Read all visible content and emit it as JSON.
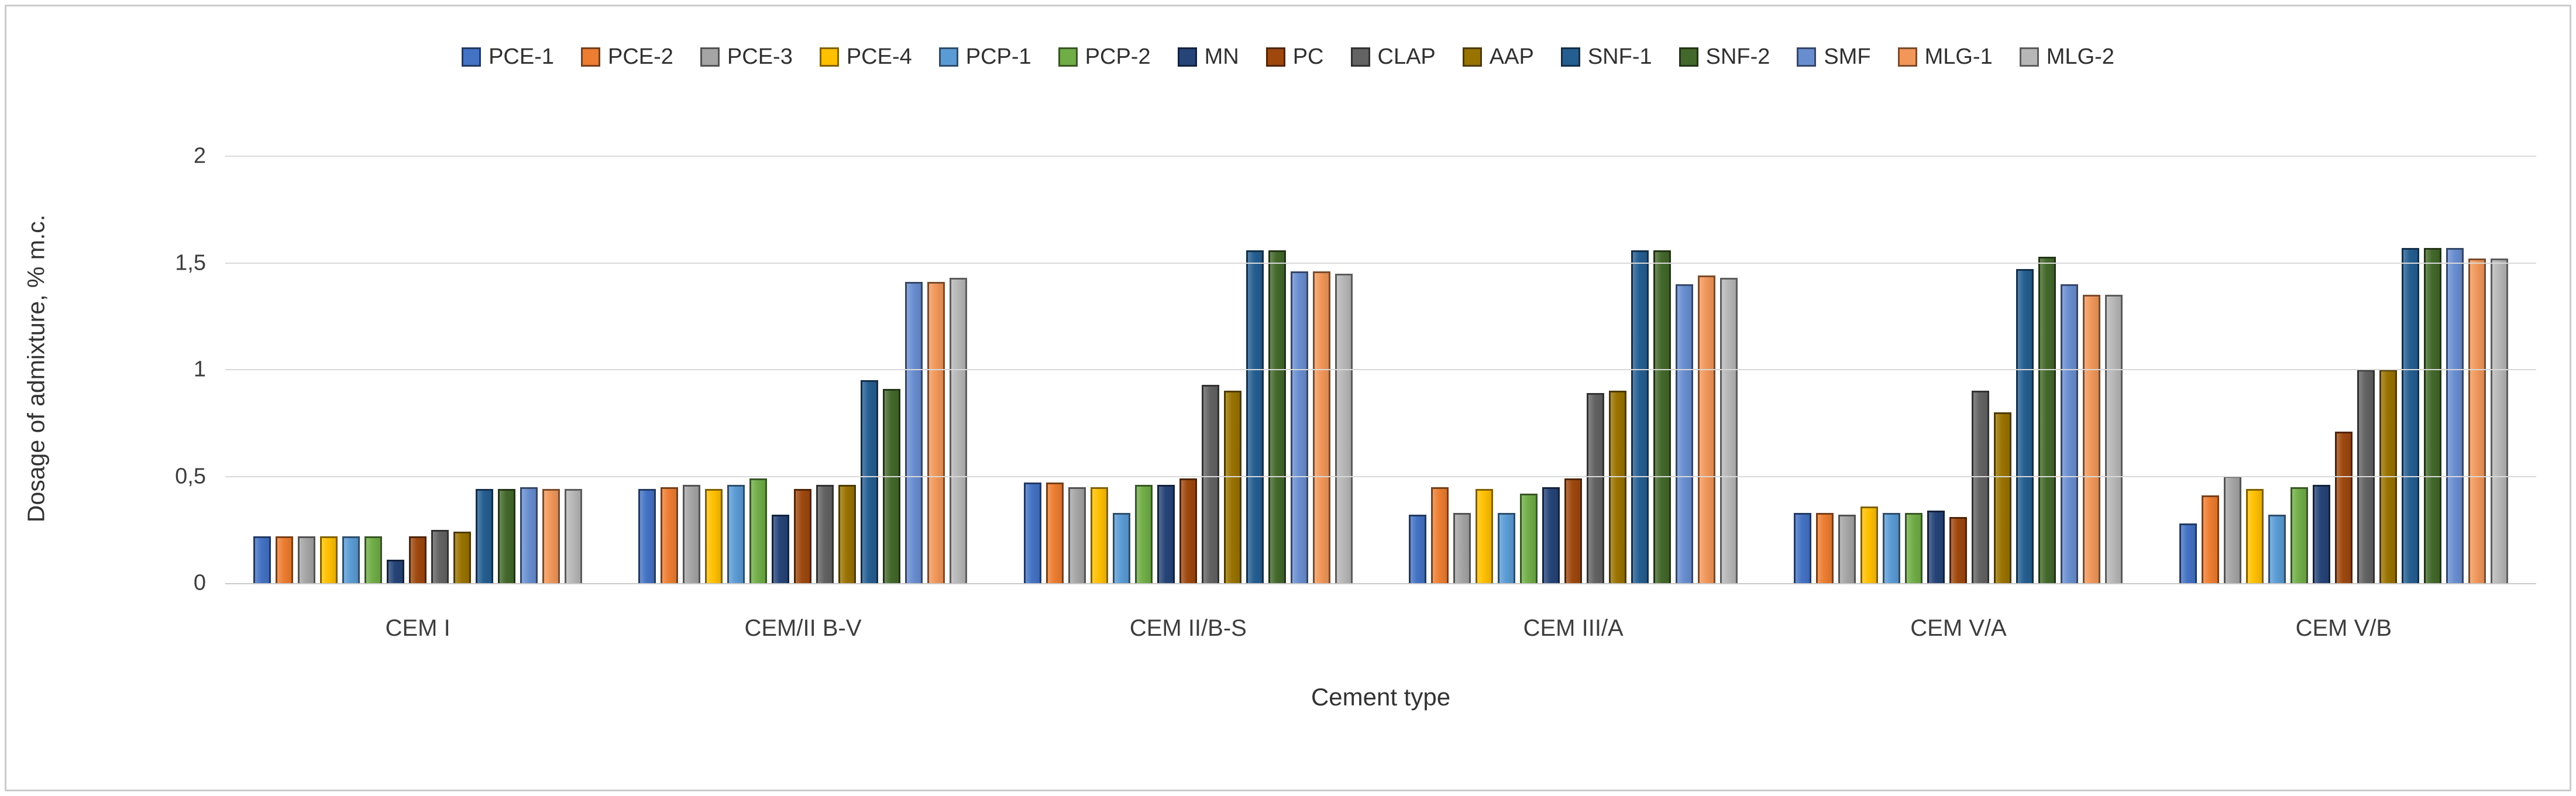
{
  "figure": {
    "background": "#ffffff",
    "border_color": "#cbcbcb",
    "grid_color": "#d9d9d9",
    "axis_line_color": "#c9c9c9",
    "text_color": "#3d3d3d"
  },
  "chart_data": {
    "type": "bar",
    "title": "",
    "xlabel": "Cement type",
    "ylabel": "Dosage of admixture, % m.c.",
    "ylim": [
      0,
      2
    ],
    "grid": true,
    "legend_position": "top",
    "decimal_separator": ",",
    "yticks": [
      {
        "value": 0,
        "label": "0"
      },
      {
        "value": 0.5,
        "label": "0,5"
      },
      {
        "value": 1,
        "label": "1"
      },
      {
        "value": 1.5,
        "label": "1,5"
      },
      {
        "value": 2,
        "label": "2"
      }
    ],
    "categories": [
      "CEM I",
      "CEM/II B-V",
      "CEM II/B-S",
      "CEM III/A",
      "CEM V/A",
      "CEM V/B"
    ],
    "series": [
      {
        "name": "PCE-1",
        "color": "#4472C4",
        "values": [
          0.22,
          0.44,
          0.47,
          0.32,
          0.33,
          0.28
        ]
      },
      {
        "name": "PCE-2",
        "color": "#ED7D31",
        "values": [
          0.22,
          0.45,
          0.47,
          0.45,
          0.33,
          0.41
        ]
      },
      {
        "name": "PCE-3",
        "color": "#A5A5A5",
        "values": [
          0.22,
          0.46,
          0.45,
          0.33,
          0.32,
          0.5
        ]
      },
      {
        "name": "PCE-4",
        "color": "#FFC000",
        "values": [
          0.22,
          0.44,
          0.45,
          0.44,
          0.36,
          0.44
        ]
      },
      {
        "name": "PCP-1",
        "color": "#5B9BD5",
        "values": [
          0.22,
          0.46,
          0.33,
          0.33,
          0.33,
          0.32
        ]
      },
      {
        "name": "PCP-2",
        "color": "#70AD47",
        "values": [
          0.22,
          0.49,
          0.46,
          0.42,
          0.33,
          0.45
        ]
      },
      {
        "name": "MN",
        "color": "#264478",
        "values": [
          0.11,
          0.32,
          0.46,
          0.45,
          0.34,
          0.46
        ]
      },
      {
        "name": "PC",
        "color": "#9E480E",
        "values": [
          0.22,
          0.44,
          0.49,
          0.49,
          0.31,
          0.71
        ]
      },
      {
        "name": "CLAP",
        "color": "#636363",
        "values": [
          0.25,
          0.46,
          0.93,
          0.89,
          0.9,
          1.0
        ]
      },
      {
        "name": "AAP",
        "color": "#997300",
        "values": [
          0.24,
          0.46,
          0.9,
          0.9,
          0.8,
          1.0
        ]
      },
      {
        "name": "SNF-1",
        "color": "#255E91",
        "values": [
          0.44,
          0.95,
          1.56,
          1.56,
          1.47,
          1.57
        ]
      },
      {
        "name": "SNF-2",
        "color": "#43682B",
        "values": [
          0.44,
          0.91,
          1.56,
          1.56,
          1.53,
          1.57
        ]
      },
      {
        "name": "SMF",
        "color": "#698ED0",
        "values": [
          0.45,
          1.41,
          1.46,
          1.4,
          1.4,
          1.57
        ]
      },
      {
        "name": "MLG-1",
        "color": "#F1975A",
        "values": [
          0.44,
          1.41,
          1.46,
          1.44,
          1.35,
          1.52
        ]
      },
      {
        "name": "MLG-2",
        "color": "#B7B7B7",
        "values": [
          0.44,
          1.43,
          1.45,
          1.43,
          1.35,
          1.52
        ]
      }
    ]
  }
}
